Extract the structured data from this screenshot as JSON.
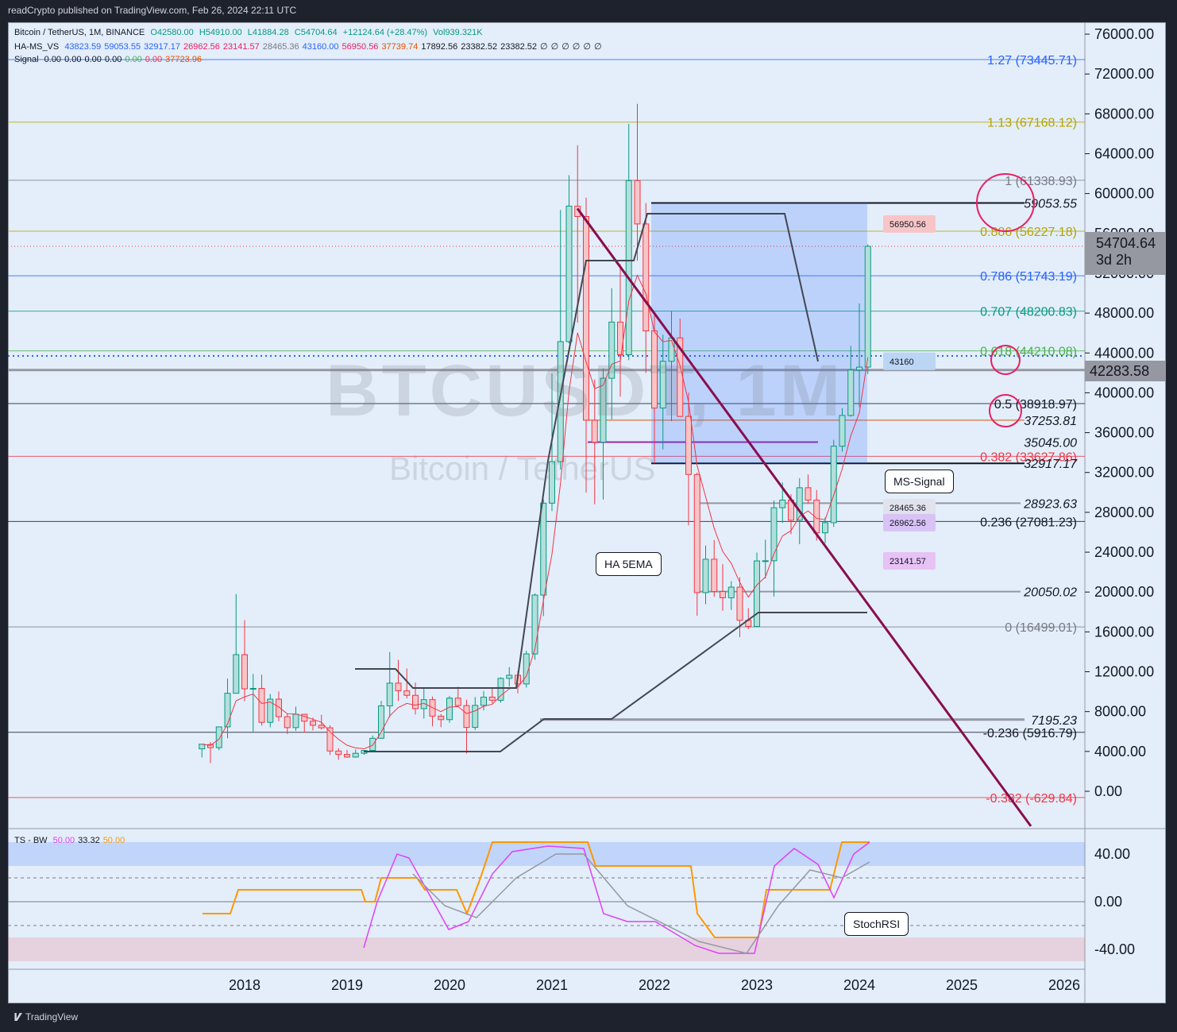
{
  "header": {
    "published": "readCrypto published on TradingView.com, Feb 26, 2024 22:11 UTC"
  },
  "legend": {
    "main": {
      "title": "Bitcoin / TetherUS, 1M, BINANCE",
      "o": "O42580.00",
      "h": "H54910.00",
      "l": "L41884.28",
      "c": "C54704.64",
      "chg": "+12124.64 (+28.47%)",
      "vol": "Vol939.321K"
    },
    "hams": {
      "name": "HA-MS_VS",
      "values": [
        "43823.59",
        "59053.55",
        "32917.17",
        "26962.56",
        "23141.57",
        "28465.36",
        "43160.00",
        "56950.56",
        "37739.74",
        "17892.56",
        "23382.52",
        "23382.52",
        "∅",
        "∅",
        "∅",
        "∅",
        "∅",
        "∅"
      ],
      "colors": [
        "#2962ff",
        "#2962ff",
        "#2962ff",
        "#e91e63",
        "#e91e63",
        "#787b86",
        "#2962ff",
        "#e91e63",
        "#e65100",
        "#131722",
        "#131722",
        "#131722",
        "#131722",
        "#131722",
        "#131722",
        "#131722",
        "#131722",
        "#131722"
      ]
    },
    "signal": {
      "name": "Signal",
      "values": [
        "0.00",
        "0.00",
        "0.00",
        "0.00",
        "0.00",
        "0.00",
        "37723.96"
      ],
      "colors": [
        "#131722",
        "#131722",
        "#131722",
        "#131722",
        "#4caf50",
        "#f23645",
        "#e65100"
      ]
    },
    "osc": {
      "name": "TS - BW",
      "values": [
        "50.00",
        "33.32",
        "50.00"
      ],
      "colors": [
        "#e040fb",
        "#131722",
        "#ff9800"
      ]
    }
  },
  "watermark": {
    "symbol": "BTCUSDT, 1M",
    "name": "Bitcoin / TetherUS"
  },
  "price_axis": [
    "76000.00",
    "72000.00",
    "68000.00",
    "64000.00",
    "60000.00",
    "56000.00",
    "52000.00",
    "48000.00",
    "44000.00",
    "40000.00",
    "36000.00",
    "32000.00",
    "28000.00",
    "24000.00",
    "20000.00",
    "16000.00",
    "12000.00",
    "8000.00",
    "4000.00",
    "0.00"
  ],
  "current_price": {
    "value": "54704.64",
    "countdown": "3d 2h"
  },
  "last_level": "42283.58",
  "fib_labels": [
    {
      "text": "1.27 (73445.71)",
      "color": "#2962ff"
    },
    {
      "text": "1.13 (67168.12)",
      "color": "#b5a400"
    },
    {
      "text": "1 (61338.93)",
      "color": "#787b86"
    },
    {
      "text": "0.886 (56227.18)",
      "color": "#b5a400"
    },
    {
      "text": "0.786 (51743.19)",
      "color": "#2962ff"
    },
    {
      "text": "0.707 (48200.83)",
      "color": "#089981"
    },
    {
      "text": "0.618 (44210.08)",
      "color": "#4caf50"
    },
    {
      "text": "0.5 (38918.97)",
      "color": "#131722"
    },
    {
      "text": "0.382 (33627.86)",
      "color": "#f23645"
    },
    {
      "text": "0.236 (27081.23)",
      "color": "#131722"
    },
    {
      "text": "0 (16499.01)",
      "color": "#787b86"
    },
    {
      "text": "-0.236 (5916.79)",
      "color": "#131722"
    },
    {
      "text": "-0.382 (-629.84)",
      "color": "#f23645"
    }
  ],
  "italic_levels": [
    "59053.55",
    "37253.81",
    "35045.00",
    "32917.17",
    "28923.63",
    "20050.02",
    "7195.23"
  ],
  "tags": [
    "56950.56",
    "43160",
    "28465.36",
    "26962.56",
    "23141.57"
  ],
  "callouts": {
    "ms_signal": "MS-Signal",
    "ha_5ema": "HA 5EMA",
    "stoch_rsi": "StochRSI"
  },
  "osc_axis": [
    "40.00",
    "0.00",
    "-40.00"
  ],
  "time_axis": [
    "2018",
    "2019",
    "2020",
    "2021",
    "2022",
    "2023",
    "2024",
    "2025",
    "2026"
  ],
  "footer": {
    "brand": "TradingView"
  },
  "chart_data": {
    "type": "candlestick",
    "title": "Bitcoin / TetherUS, 1M, BINANCE",
    "y_range": [
      -2000,
      78000
    ],
    "x_range": [
      "2017-04",
      "2026-05"
    ],
    "candles": [
      [
        "2017-08",
        4261,
        4745,
        3400,
        4724
      ],
      [
        "2017-09",
        4690,
        4939,
        2817,
        4378
      ],
      [
        "2017-10",
        4378,
        6470,
        4110,
        6463
      ],
      [
        "2017-11",
        6463,
        11300,
        5325,
        9839
      ],
      [
        "2017-12",
        9837,
        19798,
        10400,
        13716
      ],
      [
        "2018-01",
        13716,
        17176,
        9035,
        10285
      ],
      [
        "2018-02",
        10285,
        11786,
        6000,
        10326
      ],
      [
        "2018-03",
        10326,
        11700,
        6600,
        6923
      ],
      [
        "2018-04",
        6922,
        9759,
        6430,
        9246
      ],
      [
        "2018-05",
        9246,
        10020,
        7032,
        7485
      ],
      [
        "2018-06",
        7485,
        7768,
        5750,
        6391
      ],
      [
        "2018-07",
        6391,
        8491,
        6070,
        7730
      ],
      [
        "2018-08",
        7730,
        7769,
        5880,
        7033
      ],
      [
        "2018-09",
        7035,
        7410,
        6111,
        6625
      ],
      [
        "2018-10",
        6626,
        7680,
        6200,
        6371
      ],
      [
        "2018-11",
        6370,
        6615,
        3652,
        4041
      ],
      [
        "2018-12",
        4041,
        4313,
        3156,
        3702
      ],
      [
        "2019-01",
        3701,
        4143,
        3349,
        3437
      ],
      [
        "2019-02",
        3437,
        4198,
        3373,
        3813
      ],
      [
        "2019-03",
        3813,
        4140,
        3670,
        4103
      ],
      [
        "2019-04",
        4103,
        5600,
        4067,
        5320
      ],
      [
        "2019-05",
        5320,
        9074,
        5300,
        8574
      ],
      [
        "2019-06",
        8574,
        13970,
        7440,
        10854
      ],
      [
        "2019-07",
        10854,
        13200,
        9071,
        10085
      ],
      [
        "2019-08",
        10085,
        12325,
        9320,
        9630
      ],
      [
        "2019-09",
        9630,
        10905,
        7710,
        8293
      ],
      [
        "2019-10",
        8294,
        10370,
        7300,
        9199
      ],
      [
        "2019-11",
        9199,
        9508,
        6515,
        7546
      ],
      [
        "2019-12",
        7546,
        7750,
        6435,
        7193
      ],
      [
        "2020-01",
        7195,
        9578,
        6871,
        9352
      ],
      [
        "2020-02",
        9352,
        10500,
        8450,
        8600
      ],
      [
        "2020-03",
        8599,
        9188,
        3782,
        6410
      ],
      [
        "2020-04",
        6412,
        9460,
        6150,
        8620
      ],
      [
        "2020-05",
        8620,
        10067,
        8117,
        9448
      ],
      [
        "2020-06",
        9448,
        10380,
        8833,
        9138
      ],
      [
        "2020-07",
        9138,
        11444,
        8893,
        11335
      ],
      [
        "2020-08",
        11335,
        12468,
        10518,
        11649
      ],
      [
        "2020-09",
        11649,
        12050,
        9825,
        10776
      ],
      [
        "2020-10",
        10776,
        14100,
        10416,
        13791
      ],
      [
        "2020-11",
        13791,
        19863,
        13195,
        19695
      ],
      [
        "2020-12",
        19695,
        29300,
        17572,
        28923
      ],
      [
        "2021-01",
        28923,
        41950,
        28130,
        33092
      ],
      [
        "2021-02",
        33092,
        58352,
        32296,
        45135
      ],
      [
        "2021-03",
        45134,
        61844,
        44950,
        58740
      ],
      [
        "2021-04",
        58739,
        64854,
        47044,
        57694
      ],
      [
        "2021-05",
        57697,
        59592,
        30000,
        37253
      ],
      [
        "2021-06",
        37253,
        41330,
        28805,
        35045
      ],
      [
        "2021-07",
        35045,
        42448,
        29278,
        41461
      ],
      [
        "2021-08",
        41461,
        50500,
        37332,
        47100
      ],
      [
        "2021-09",
        47100,
        52920,
        39600,
        43824
      ],
      [
        "2021-10",
        43820,
        67000,
        43283,
        61299
      ],
      [
        "2021-11",
        61300,
        69000,
        53256,
        56950
      ],
      [
        "2021-12",
        56950,
        59053,
        42000,
        46216
      ],
      [
        "2022-01",
        46216,
        47990,
        32917,
        38466
      ],
      [
        "2022-02",
        38467,
        45821,
        34322,
        43160
      ],
      [
        "2022-03",
        43160,
        48189,
        37155,
        45510
      ],
      [
        "2022-04",
        45510,
        47444,
        37578,
        37630
      ],
      [
        "2022-05",
        37631,
        40023,
        26700,
        31801
      ],
      [
        "2022-06",
        31801,
        31986,
        17622,
        19942
      ],
      [
        "2022-07",
        19942,
        24668,
        18781,
        23292
      ],
      [
        "2022-08",
        23296,
        25211,
        19520,
        20050
      ],
      [
        "2022-09",
        20048,
        22800,
        18125,
        19423
      ],
      [
        "2022-10",
        19423,
        21085,
        18190,
        20490
      ],
      [
        "2022-11",
        20490,
        21480,
        15476,
        17164
      ],
      [
        "2022-12",
        17165,
        18387,
        16256,
        16542
      ],
      [
        "2023-01",
        16542,
        23960,
        16499,
        23125
      ],
      [
        "2023-02",
        23125,
        25250,
        21351,
        23141
      ],
      [
        "2023-03",
        23141,
        29184,
        19549,
        28465
      ],
      [
        "2023-04",
        28465,
        31000,
        26942,
        29233
      ],
      [
        "2023-05",
        29233,
        29820,
        25811,
        27210
      ],
      [
        "2023-06",
        27210,
        31431,
        24800,
        30472
      ],
      [
        "2023-07",
        30472,
        31804,
        28861,
        29232
      ],
      [
        "2023-08",
        29232,
        30244,
        25166,
        25940
      ],
      [
        "2023-09",
        25940,
        27483,
        24901,
        26962
      ],
      [
        "2023-10",
        26962,
        35280,
        26538,
        34639
      ],
      [
        "2023-11",
        34640,
        38450,
        34097,
        37723
      ],
      [
        "2023-12",
        37723,
        44700,
        37615,
        42283
      ],
      [
        "2024-01",
        42283,
        48969,
        38555,
        42580
      ],
      [
        "2024-02",
        42580,
        54910,
        41884,
        54704
      ]
    ]
  }
}
